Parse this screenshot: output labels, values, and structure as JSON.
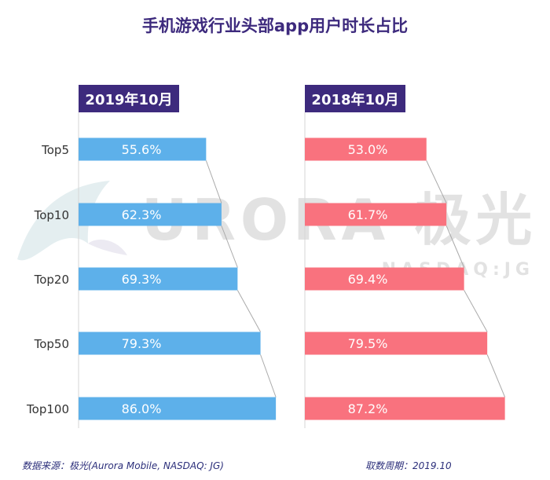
{
  "chart_data": {
    "type": "bar",
    "title": "手机游戏行业头部app用户时长占比",
    "categories": [
      "Top5",
      "Top10",
      "Top20",
      "Top50",
      "Top100"
    ],
    "series": [
      {
        "name": "2019年10月",
        "values": [
          55.6,
          62.3,
          69.3,
          79.3,
          86.0
        ],
        "labels": [
          "55.6%",
          "62.3%",
          "69.3%",
          "79.3%",
          "86.0%"
        ],
        "color": "#5db0ea"
      },
      {
        "name": "2018年10月",
        "values": [
          53.0,
          61.7,
          69.4,
          79.5,
          87.2
        ],
        "labels": [
          "53.0%",
          "61.7%",
          "69.4%",
          "79.5%",
          "87.2%"
        ],
        "color": "#f9727e"
      }
    ],
    "xlim": [
      0,
      100
    ],
    "header_color": "#3d2a7d"
  },
  "watermark": {
    "brand": "URORA 极光",
    "sub": "NASDAQ:JG"
  },
  "footer": {
    "source": "数据来源：极光(Aurora Mobile, NASDAQ: JG)",
    "period": "取数周期：2019.10"
  },
  "colors": {
    "title": "#3d2a7d",
    "footer_text": "#2b2e7a",
    "axis_label": "#333333",
    "watermark": "#e2e2e2",
    "connector": "#aaaaaa"
  }
}
